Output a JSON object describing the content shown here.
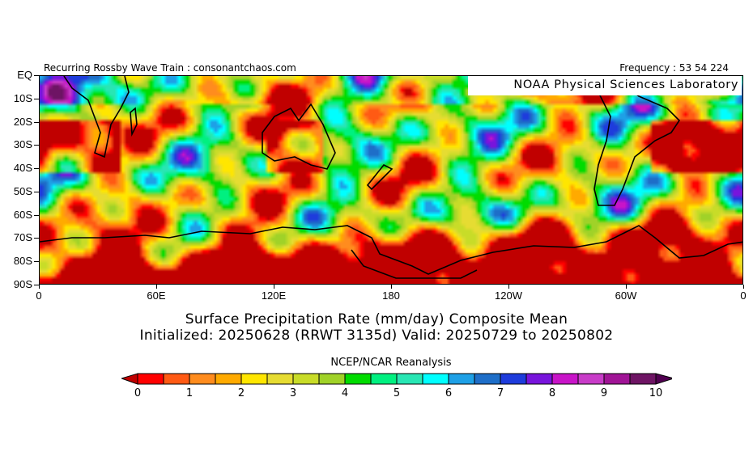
{
  "header": {
    "left_title": "Recurring Rossby Wave Train : consonantchaos.com",
    "right_title": "Frequency : 53 54 224",
    "overlay_label": "NOAA Physical Sciences Laboratory"
  },
  "map": {
    "y_axis_labels": [
      "EQ",
      "10S",
      "20S",
      "30S",
      "40S",
      "50S",
      "60S",
      "70S",
      "80S",
      "90S"
    ],
    "x_axis_labels": [
      "0",
      "60E",
      "120E",
      "180",
      "120W",
      "60W",
      "0"
    ]
  },
  "titles": {
    "line1": "Surface Precipitation Rate (mm/day) Composite Mean",
    "line2": "Initialized: 20250628 (RRWT 3135d) Valid: 20250729 to 20250802"
  },
  "colorbar": {
    "source_label": "NCEP/NCAR Reanalysis",
    "tick_labels": [
      "0",
      "1",
      "2",
      "3",
      "4",
      "5",
      "6",
      "7",
      "8",
      "9",
      "10"
    ],
    "under_color": "#c00000",
    "over_color": "#500050",
    "colors": [
      "#ff0000",
      "#ff5a14",
      "#ff8c1e",
      "#ffaa00",
      "#ffe600",
      "#e6dc32",
      "#c8dc28",
      "#a0d228",
      "#00dc00",
      "#00f080",
      "#28e6b4",
      "#00ffff",
      "#1ea0e6",
      "#1e6ec8",
      "#1e3cdc",
      "#7814dc",
      "#c814c8",
      "#c83cc8",
      "#a01496",
      "#6e1464"
    ]
  }
}
